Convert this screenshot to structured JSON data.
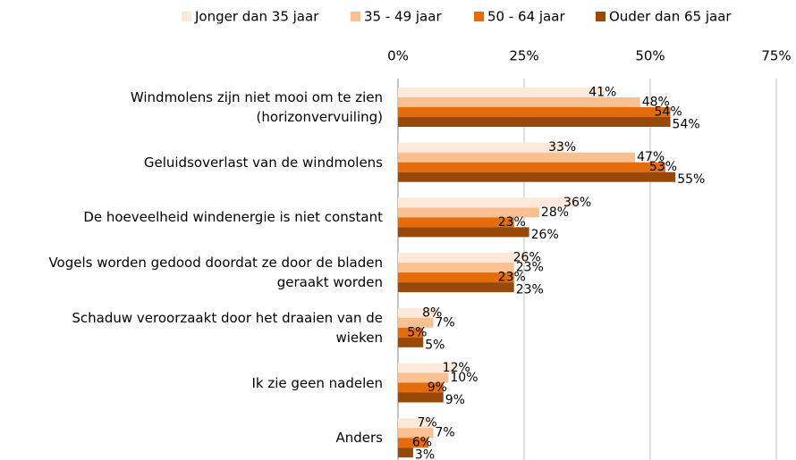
{
  "chart_data": {
    "type": "hbar",
    "categories": [
      "Windmolens zijn niet mooi om te zien\n(horizonvervuiling)",
      "Geluidsoverlast van de windmolens",
      "De hoeveelheid windenergie is niet constant",
      "Vogels worden gedood doordat ze door de bladen\ngeraakt worden",
      "Schaduw veroorzaakt door het draaien van de\nwieken",
      "Ik zie geen nadelen",
      "Anders"
    ],
    "series": [
      {
        "name": "Jonger dan 35 jaar",
        "color": "#fde9d9",
        "values": [
          41,
          33,
          36,
          26,
          8,
          12,
          7
        ],
        "value_labels": [
          "41%",
          "33%",
          "36%",
          "26%",
          "8%",
          "12%",
          "7%"
        ]
      },
      {
        "name": "35 - 49 jaar",
        "color": "#fac090",
        "values": [
          48,
          47,
          28,
          23,
          7,
          10,
          7
        ],
        "value_labels": [
          "48%",
          "47%",
          "28%",
          "23%",
          "7%",
          "10%",
          "7%"
        ]
      },
      {
        "name": "50 - 64 jaar",
        "color": "#e46c0a",
        "values": [
          54,
          53,
          23,
          23,
          5,
          9,
          6
        ],
        "value_labels": [
          "54%",
          "53%",
          "23%",
          "23%",
          "5%",
          "9%",
          "6%"
        ]
      },
      {
        "name": "Ouder dan 65 jaar",
        "color": "#984807",
        "values": [
          54,
          55,
          26,
          23,
          5,
          9,
          3
        ],
        "value_labels": [
          "54%",
          "55%",
          "26%",
          "23%",
          "5%",
          "9%",
          "3%"
        ]
      }
    ],
    "xlim": [
      0,
      75
    ],
    "xticks": [
      {
        "value": 0,
        "label": "0%"
      },
      {
        "value": 25,
        "label": "25%"
      },
      {
        "value": 50,
        "label": "50%"
      },
      {
        "value": 75,
        "label": "75%"
      }
    ],
    "grid": true,
    "legend": "top"
  }
}
